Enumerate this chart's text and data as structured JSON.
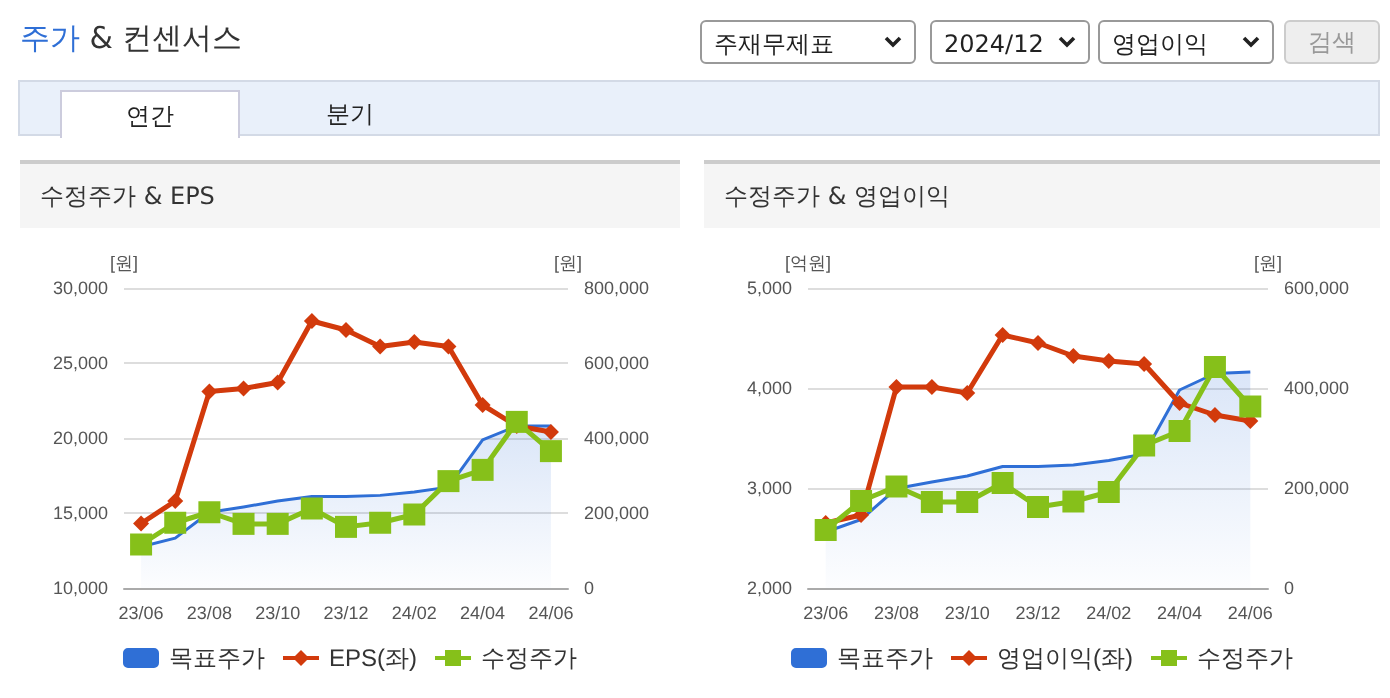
{
  "chart_data": [
    {
      "type": "line",
      "title": "수정주가 & EPS",
      "annotations": [
        "주가 & 컨센서스",
        "주재무제표",
        "2024/12",
        "영업이익",
        "검색",
        "연간",
        "분기"
      ],
      "ylabel": "[원]",
      "y2label": "[원]",
      "categories": [
        "23/06",
        null,
        "23/08",
        null,
        "23/10",
        null,
        "23/12",
        null,
        "24/02",
        null,
        "24/04",
        null,
        "24/06"
      ],
      "ylim": [
        10000,
        30000
      ],
      "yticks": [
        {
          "value": 10000,
          "label": "10,000"
        },
        {
          "value": 15000,
          "label": "15,000"
        },
        {
          "value": 20000,
          "label": "20,000"
        },
        {
          "value": 25000,
          "label": "25,000"
        },
        {
          "value": 30000,
          "label": "30,000"
        }
      ],
      "y2lim": [
        0,
        800000
      ],
      "y2ticks": [
        0,
        {
          "value": 200000,
          "label": "200,000"
        },
        {
          "value": 400000,
          "label": "400,000"
        },
        {
          "value": 600000,
          "label": "600,000"
        },
        {
          "value": 800000,
          "label": "800,000"
        }
      ],
      "grid": "y",
      "legend": "bottom",
      "series": [
        {
          "name": "목표주가",
          "type": "area",
          "axis": "y2",
          "marker": "none",
          "color": "#2f6fd6",
          "values": [
            110000,
            133000,
            202000,
            216000,
            232000,
            244000,
            244000,
            247000,
            256000,
            269000,
            395000,
            432000,
            432000
          ]
        },
        {
          "name": "EPS(좌)",
          "axis": "y",
          "marker": "diamond",
          "color": "#d23a0c",
          "values": [
            14300,
            15800,
            23100,
            23300,
            23700,
            27800,
            27200,
            26100,
            26400,
            26100,
            22200,
            20800,
            20400
          ]
        },
        {
          "name": "수정주가",
          "axis": "y2",
          "marker": "square",
          "color": "#86c01a",
          "values": [
            116000,
            174000,
            202000,
            171000,
            171000,
            212000,
            163000,
            174000,
            196000,
            285000,
            315000,
            443000,
            365000
          ]
        }
      ]
    },
    {
      "type": "line",
      "title": "수정주가 & 영업이익",
      "ylabel": "[억원]",
      "y2label": "[원]",
      "categories": [
        "23/06",
        null,
        "23/08",
        null,
        "23/10",
        null,
        "23/12",
        null,
        "24/02",
        null,
        "24/04",
        null,
        "24/06"
      ],
      "ylim": [
        2000,
        5000
      ],
      "yticks": [
        {
          "value": 2000,
          "label": "2,000"
        },
        {
          "value": 3000,
          "label": "3,000"
        },
        {
          "value": 4000,
          "label": "4,000"
        },
        {
          "value": 5000,
          "label": "5,000"
        }
      ],
      "y2lim": [
        0,
        600000
      ],
      "y2ticks": [
        0,
        {
          "value": 200000,
          "label": "200,000"
        },
        {
          "value": 400000,
          "label": "400,000"
        },
        {
          "value": 600000,
          "label": "600,000"
        }
      ],
      "grid": "y",
      "legend": "bottom",
      "series": [
        {
          "name": "목표주가",
          "type": "area",
          "axis": "y2",
          "marker": "none",
          "color": "#2f6fd6",
          "values": [
            112000,
            137000,
            199000,
            212000,
            224000,
            243000,
            243000,
            246000,
            255000,
            268000,
            396000,
            429000,
            432000
          ]
        },
        {
          "name": "영업이익(좌)",
          "axis": "y",
          "marker": "diamond",
          "color": "#d23a0c",
          "values": [
            2650,
            2730,
            4010,
            4010,
            3950,
            4530,
            4450,
            4320,
            4270,
            4240,
            3850,
            3730,
            3670
          ]
        },
        {
          "name": "수정주가",
          "axis": "y2",
          "marker": "square",
          "color": "#86c01a",
          "values": [
            116000,
            174000,
            203000,
            172000,
            172000,
            210000,
            162000,
            173000,
            192000,
            285000,
            314000,
            442000,
            363000
          ]
        }
      ]
    }
  ]
}
